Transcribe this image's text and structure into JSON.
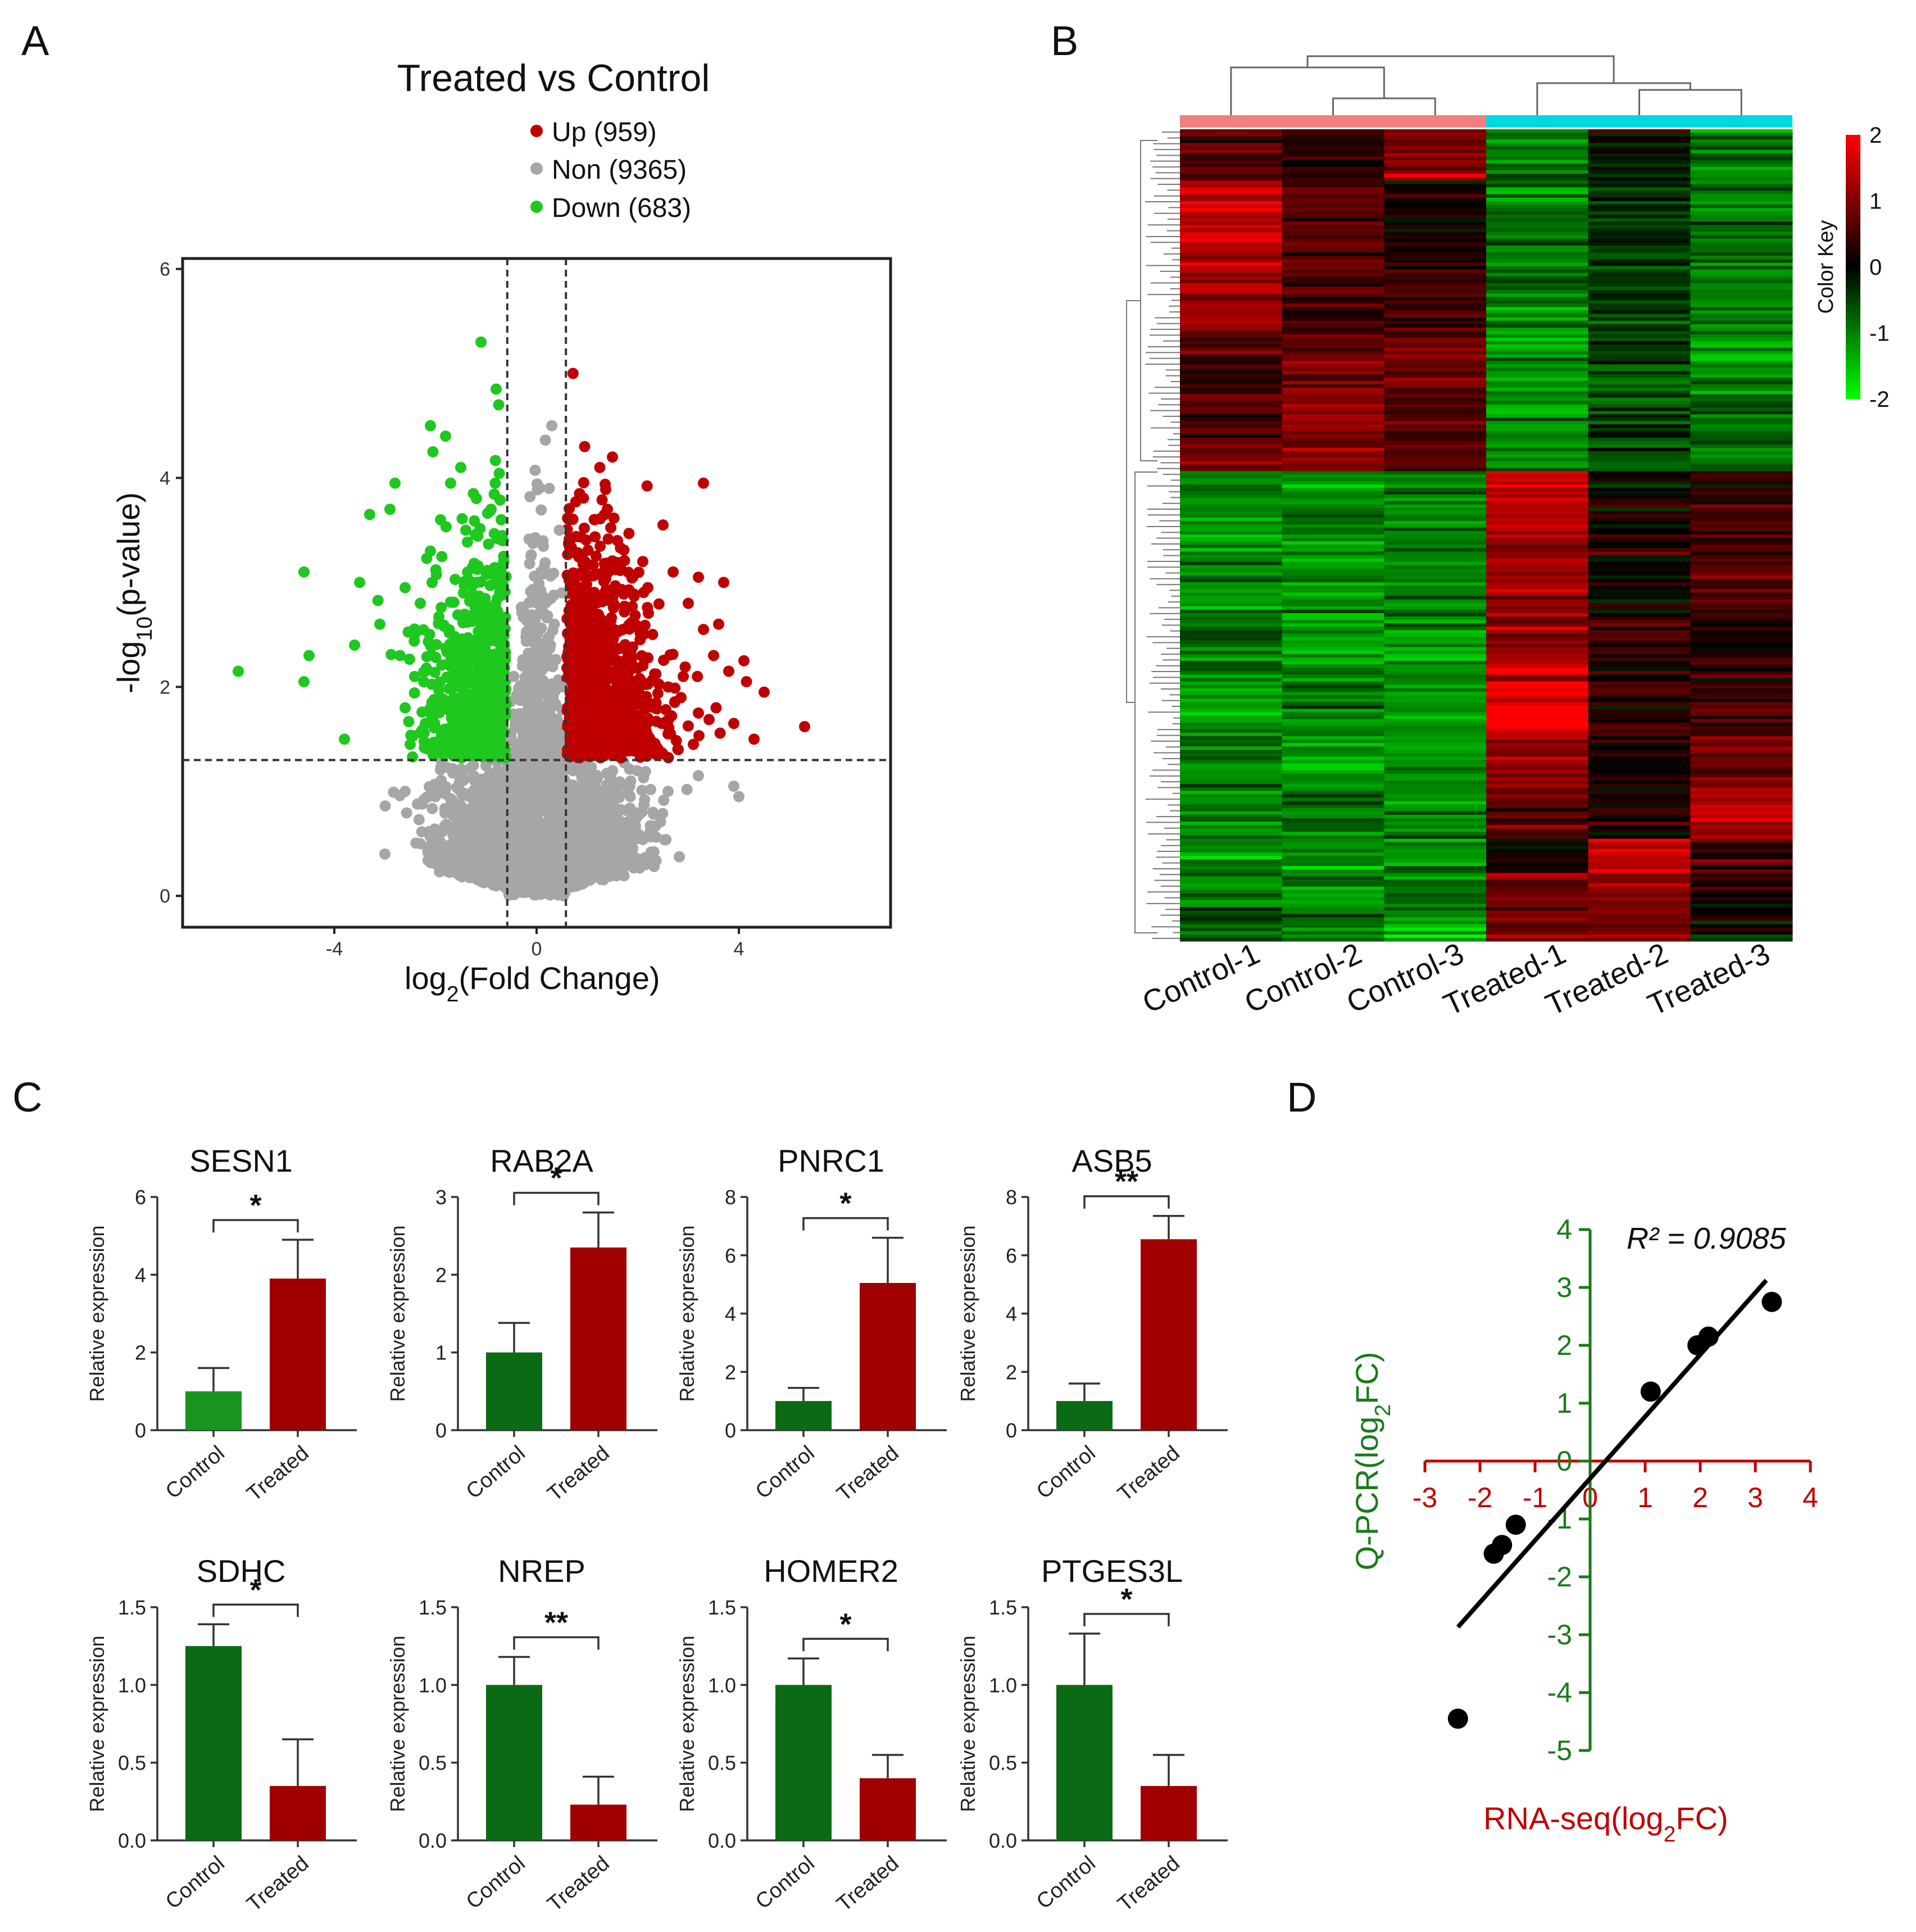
{
  "panels": {
    "A": "A",
    "B": "B",
    "C": "C",
    "D": "D"
  },
  "colors": {
    "up": "#c00000",
    "non": "#a6a6a6",
    "down": "#1ec81e",
    "control_bar_dark": "#0a6b14",
    "control_bar_light": "#17951e",
    "treated_bar": "#a00000",
    "heat_high": "#ff0000",
    "heat_low": "#00ff00",
    "heat_mid": "#000000",
    "control_group": "#f08080",
    "treated_group": "#00d8e0",
    "d_x_axis": "#c00000",
    "d_y_axis": "#1a7a1a"
  },
  "chart_data": [
    {
      "id": "A",
      "type": "scatter",
      "title": "Treated vs Control",
      "xlabel": "log2(Fold Change)",
      "ylabel": "-log10(p-value)",
      "xlim": [
        -7,
        7
      ],
      "ylim": [
        -0.3,
        6.1
      ],
      "xticks": [
        -4,
        0,
        4
      ],
      "yticks": [
        0,
        2,
        4,
        6
      ],
      "thresholds": {
        "log2fc": [
          -0.58,
          0.58
        ],
        "neg_log10_p": 1.3
      },
      "legend_position": "top",
      "series": [
        {
          "name": "Up",
          "count": 959,
          "label": "Up (959)",
          "points": [
            [
              0.72,
              5.0
            ],
            [
              0.95,
              4.3
            ],
            [
              1.25,
              4.1
            ],
            [
              1.5,
              4.2
            ],
            [
              3.3,
              3.95
            ],
            [
              2.5,
              3.55
            ],
            [
              2.1,
              3.2
            ],
            [
              1.9,
              3.05
            ],
            [
              2.2,
              2.95
            ],
            [
              3.2,
              3.05
            ],
            [
              3.7,
              3.0
            ],
            [
              1.6,
              3.4
            ],
            [
              1.15,
              3.6
            ],
            [
              1.4,
              3.7
            ],
            [
              0.85,
              3.85
            ],
            [
              2.7,
              3.1
            ],
            [
              3.0,
              2.8
            ],
            [
              3.3,
              2.55
            ],
            [
              3.6,
              2.6
            ],
            [
              4.1,
              2.25
            ],
            [
              4.15,
              2.05
            ],
            [
              3.8,
              2.15
            ],
            [
              3.5,
              2.3
            ],
            [
              2.9,
              2.1
            ],
            [
              2.6,
              2.0
            ],
            [
              3.2,
              1.75
            ],
            [
              3.55,
              1.8
            ],
            [
              3.9,
              1.65
            ],
            [
              4.3,
              1.5
            ],
            [
              5.3,
              1.62
            ],
            [
              4.5,
              1.95
            ],
            [
              2.6,
              1.55
            ],
            [
              2.2,
              1.7
            ],
            [
              2.8,
              1.4
            ],
            [
              3.1,
              1.45
            ]
          ]
        },
        {
          "name": "Non",
          "count": 9365,
          "label": "Non (9365)",
          "points": [
            [
              0.3,
              4.5
            ],
            [
              0.25,
              3.9
            ],
            [
              0.45,
              3.5
            ],
            [
              0.15,
              3.1
            ],
            [
              0.5,
              2.9
            ],
            [
              0.35,
              2.6
            ],
            [
              0.2,
              2.2
            ],
            [
              0.5,
              2.0
            ],
            [
              0.1,
              1.8
            ],
            [
              -0.2,
              1.9
            ],
            [
              -0.45,
              2.1
            ],
            [
              -0.3,
              1.7
            ],
            [
              -0.5,
              1.5
            ],
            [
              0.45,
              1.55
            ],
            [
              2.6,
              1.0
            ],
            [
              3.2,
              1.15
            ],
            [
              3.9,
              1.05
            ],
            [
              4.0,
              0.95
            ],
            [
              2.3,
              0.8
            ],
            [
              1.7,
              0.7
            ],
            [
              -3.0,
              0.4
            ],
            [
              -2.3,
              0.5
            ],
            [
              -2.0,
              0.95
            ],
            [
              -2.6,
              1.0
            ],
            [
              -1.6,
              0.75
            ],
            [
              1.4,
              0.35
            ],
            [
              -1.2,
              0.25
            ],
            [
              1.6,
              0.55
            ]
          ]
        },
        {
          "name": "Down",
          "count": 683,
          "label": "Down (683)",
          "points": [
            [
              -1.1,
              5.3
            ],
            [
              -0.8,
              4.85
            ],
            [
              -0.75,
              4.7
            ],
            [
              -2.1,
              4.5
            ],
            [
              -1.8,
              4.4
            ],
            [
              -2.05,
              4.25
            ],
            [
              -1.5,
              4.1
            ],
            [
              -2.8,
              3.95
            ],
            [
              -3.3,
              3.65
            ],
            [
              -2.9,
              3.7
            ],
            [
              -1.25,
              3.85
            ],
            [
              -1.7,
              3.95
            ],
            [
              -4.6,
              3.1
            ],
            [
              -3.5,
              3.0
            ],
            [
              -2.6,
              2.95
            ],
            [
              -2.3,
              2.8
            ],
            [
              -2.1,
              3.3
            ],
            [
              -1.9,
              3.6
            ],
            [
              -1.4,
              3.5
            ],
            [
              -0.9,
              3.7
            ],
            [
              -0.7,
              3.6
            ],
            [
              -0.65,
              3.2
            ],
            [
              -5.9,
              2.15
            ],
            [
              -4.5,
              2.3
            ],
            [
              -4.6,
              2.05
            ],
            [
              -3.6,
              2.4
            ],
            [
              -3.1,
              2.6
            ],
            [
              -2.7,
              2.3
            ],
            [
              -2.2,
              2.15
            ],
            [
              -2.6,
              1.8
            ],
            [
              -3.8,
              1.5
            ],
            [
              -2.2,
              1.65
            ],
            [
              -1.9,
              1.5
            ],
            [
              -2.5,
              1.45
            ],
            [
              -1.7,
              2.4
            ],
            [
              -1.2,
              2.7
            ]
          ]
        }
      ]
    },
    {
      "id": "B",
      "type": "heatmap",
      "color_key_label": "Color Key",
      "scale": [
        -2,
        2
      ],
      "scale_ticks": [
        "2",
        "1",
        "0",
        "-1",
        "-2"
      ],
      "columns": [
        "Control-1",
        "Control-2",
        "Control-3",
        "Treated-1",
        "Treated-2",
        "Treated-3"
      ],
      "segments": [
        {
          "frac": 0.06,
          "values": [
            0.7,
            0.4,
            0.9,
            -0.8,
            -0.2,
            -0.9
          ]
        },
        {
          "frac": 0.1,
          "values": [
            1.5,
            0.7,
            0.2,
            -0.9,
            -0.3,
            -0.9
          ]
        },
        {
          "frac": 0.08,
          "values": [
            1.2,
            0.5,
            0.6,
            -1.0,
            -0.4,
            -1.0
          ]
        },
        {
          "frac": 0.07,
          "values": [
            0.5,
            0.8,
            0.9,
            -1.2,
            -0.5,
            -1.1
          ]
        },
        {
          "frac": 0.09,
          "values": [
            0.7,
            1.1,
            0.6,
            -1.1,
            -0.6,
            -0.9
          ]
        },
        {
          "frac": 0.07,
          "values": [
            -1.0,
            -1.1,
            -1.0,
            1.6,
            0.1,
            0.5
          ]
        },
        {
          "frac": 0.1,
          "values": [
            -1.0,
            -1.1,
            -1.0,
            1.3,
            0.2,
            0.6
          ]
        },
        {
          "frac": 0.06,
          "values": [
            -0.9,
            -1.1,
            -1.2,
            1.1,
            0.5,
            0.3
          ]
        },
        {
          "frac": 0.08,
          "values": [
            -1.1,
            -1.0,
            -1.2,
            1.7,
            0.3,
            0.4
          ]
        },
        {
          "frac": 0.06,
          "values": [
            -1.0,
            -1.1,
            -1.1,
            1.1,
            0.1,
            0.9
          ]
        },
        {
          "frac": 0.06,
          "values": [
            -1.0,
            -1.0,
            -1.0,
            0.7,
            0.1,
            1.2
          ]
        },
        {
          "frac": 0.04,
          "values": [
            -1.0,
            -1.0,
            -1.1,
            0.3,
            1.6,
            0.6
          ]
        },
        {
          "frac": 0.04,
          "values": [
            -1.1,
            -1.0,
            -0.9,
            0.9,
            0.9,
            0.3
          ]
        },
        {
          "frac": 0.04,
          "values": [
            -0.9,
            -1.0,
            -1.2,
            0.8,
            0.8,
            0.1
          ]
        }
      ]
    },
    {
      "id": "C",
      "type": "bar",
      "ylabel": "Relative expression",
      "categories": [
        "Control",
        "Treated"
      ],
      "significance_label": "*",
      "subplots": [
        {
          "title": "SESN1",
          "ylim": [
            0,
            6
          ],
          "yticks": [
            "0",
            "2",
            "4",
            "6"
          ],
          "values": [
            1.0,
            3.9
          ],
          "errors": [
            0.6,
            1.0
          ],
          "sig": "*"
        },
        {
          "title": "RAB2A",
          "ylim": [
            0,
            3
          ],
          "yticks": [
            "0",
            "1",
            "2",
            "3"
          ],
          "values": [
            1.0,
            2.35
          ],
          "errors": [
            0.38,
            0.45
          ],
          "sig": "*"
        },
        {
          "title": "PNRC1",
          "ylim": [
            0,
            8
          ],
          "yticks": [
            "0",
            "2",
            "4",
            "6",
            "8"
          ],
          "values": [
            1.0,
            5.05
          ],
          "errors": [
            0.45,
            1.55
          ],
          "sig": "*"
        },
        {
          "title": "ASB5",
          "ylim": [
            0,
            8
          ],
          "yticks": [
            "0",
            "2",
            "4",
            "6",
            "8"
          ],
          "values": [
            1.0,
            6.55
          ],
          "errors": [
            0.6,
            0.8
          ],
          "sig": "**"
        },
        {
          "title": "SDHC",
          "ylim": [
            0,
            1.5
          ],
          "yticks": [
            "0.0",
            "0.5",
            "1.0",
            "1.5"
          ],
          "values": [
            1.25,
            0.35
          ],
          "errors": [
            0.14,
            0.3
          ],
          "sig": "*"
        },
        {
          "title": "NREP",
          "ylim": [
            0,
            1.5
          ],
          "yticks": [
            "0.0",
            "0.5",
            "1.0",
            "1.5"
          ],
          "values": [
            1.0,
            0.23
          ],
          "errors": [
            0.18,
            0.18
          ],
          "sig": "**"
        },
        {
          "title": "HOMER2",
          "ylim": [
            0,
            1.5
          ],
          "yticks": [
            "0.0",
            "0.5",
            "1.0",
            "1.5"
          ],
          "values": [
            1.0,
            0.4
          ],
          "errors": [
            0.17,
            0.15
          ],
          "sig": "*"
        },
        {
          "title": "PTGES3L",
          "ylim": [
            0,
            1.5
          ],
          "yticks": [
            "0.0",
            "0.5",
            "1.0",
            "1.5"
          ],
          "values": [
            1.0,
            0.35
          ],
          "errors": [
            0.33,
            0.2
          ],
          "sig": "*"
        }
      ]
    },
    {
      "id": "D",
      "type": "scatter",
      "xlabel": "RNA-seq(log2FC)",
      "ylabel": "Q-PCR(log2FC)",
      "annotation": "R² = 0.9085",
      "xlim": [
        -3,
        4
      ],
      "ylim": [
        -5,
        4
      ],
      "xticks": [
        "-3",
        "-2",
        "-1",
        "0",
        "1",
        "2",
        "3",
        "4"
      ],
      "yticks": [
        "4",
        "3",
        "2",
        "1",
        "0",
        "-1",
        "-2",
        "-3",
        "-4",
        "-5"
      ],
      "x": [
        -2.4,
        -1.75,
        -1.6,
        -1.35,
        1.1,
        1.95,
        2.15,
        3.3
      ],
      "y": [
        -4.45,
        -1.6,
        -1.45,
        -1.1,
        1.2,
        2.0,
        2.15,
        2.75
      ],
      "fit": {
        "slope": 1.07,
        "intercept": -0.3,
        "x_range": [
          -2.4,
          3.2
        ]
      }
    }
  ]
}
